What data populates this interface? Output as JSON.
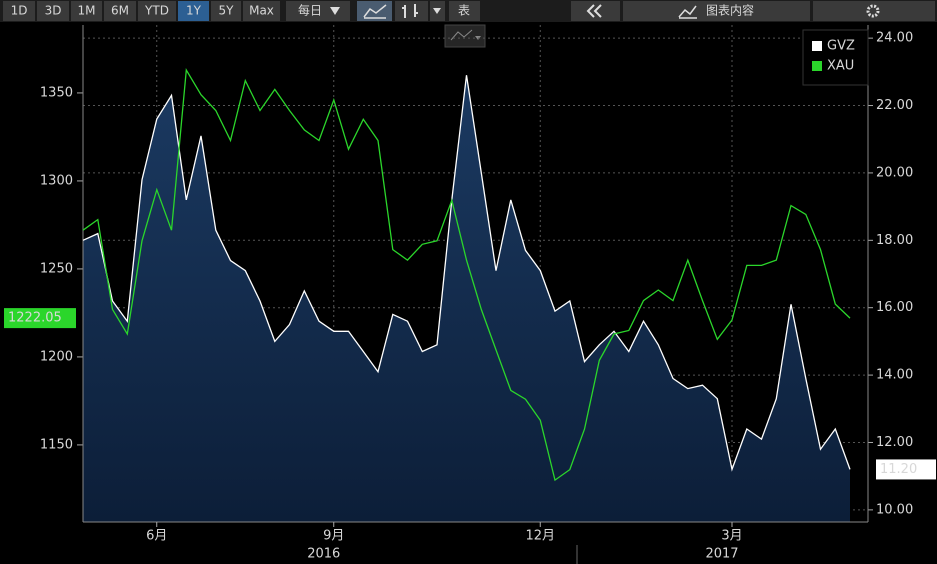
{
  "toolbar": {
    "ranges": [
      "1D",
      "3D",
      "1M",
      "6M",
      "YTD",
      "1Y",
      "5Y",
      "Max"
    ],
    "active": "1Y",
    "frequency": "每日",
    "table": "表",
    "chart_contents": "图表内容"
  },
  "chart_data": {
    "type": "line",
    "categories": [
      null,
      null,
      null,
      null,
      null,
      "6月",
      null,
      null,
      null,
      null,
      null,
      null,
      null,
      null,
      null,
      null,
      null,
      "9月",
      null,
      null,
      null,
      null,
      null,
      null,
      null,
      null,
      null,
      null,
      null,
      null,
      null,
      "12月",
      null,
      null,
      null,
      null,
      null,
      null,
      null,
      null,
      null,
      null,
      null,
      null,
      "3月",
      null,
      null,
      null,
      null,
      null,
      null,
      null,
      null
    ],
    "x_groups": [
      "2016",
      "2017"
    ],
    "series": [
      {
        "name": "GVZ",
        "color": "#ffffff",
        "axis": "y2",
        "area": true,
        "last_label": "11.20",
        "values": [
          18.0,
          18.2,
          16.2,
          15.6,
          19.8,
          21.6,
          22.3,
          19.2,
          21.1,
          18.3,
          17.4,
          17.1,
          16.2,
          15.0,
          15.5,
          16.5,
          15.6,
          15.3,
          15.3,
          14.7,
          14.1,
          15.8,
          15.6,
          14.7,
          14.9,
          19.2,
          22.9,
          20.0,
          17.1,
          19.2,
          17.7,
          17.1,
          15.9,
          16.2,
          14.4,
          14.9,
          15.3,
          14.7,
          15.6,
          14.9,
          13.9,
          13.6,
          13.7,
          13.3,
          11.2,
          12.4,
          12.1,
          13.3,
          16.1,
          13.9,
          11.8,
          12.4,
          11.2
        ]
      },
      {
        "name": "XAU",
        "color": "#2bd62b",
        "axis": "y",
        "values": [
          1272,
          1278,
          1227,
          1213,
          1266,
          1295,
          1272,
          1363,
          1349,
          1340,
          1323,
          1357,
          1340,
          1352,
          1340,
          1329,
          1323,
          1346,
          1318,
          1335,
          1323,
          1261,
          1255,
          1264,
          1266,
          1289,
          1255,
          1227,
          1204,
          1181,
          1176,
          1164,
          1130,
          1136,
          1159,
          1198,
          1213,
          1215,
          1232,
          1238,
          1232,
          1255,
          1232,
          1210,
          1221,
          1252,
          1252,
          1255,
          1286,
          1281,
          1261,
          1230,
          1222.05
        ]
      }
    ],
    "ylim": [
      1106.2,
      1388.6
    ],
    "yticks": [
      1150,
      1200,
      1250,
      1300,
      1350
    ],
    "y2lim": [
      9.64,
      24.39
    ],
    "y2ticks": [
      {
        "value": 10,
        "label": "10.00"
      },
      {
        "value": 12,
        "label": "12.00"
      },
      {
        "value": 14,
        "label": "14.00"
      },
      {
        "value": 16,
        "label": "16.00"
      },
      {
        "value": 18,
        "label": "18.00"
      },
      {
        "value": 20,
        "label": "20.00"
      },
      {
        "value": 22,
        "label": "22.00"
      },
      {
        "value": 24,
        "label": "24.00"
      }
    ],
    "grid": true
  }
}
